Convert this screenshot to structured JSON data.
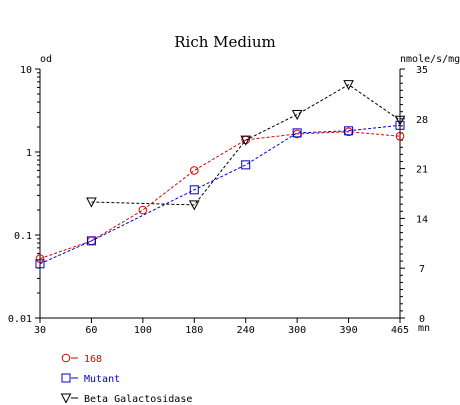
{
  "chart_data": {
    "type": "line",
    "title": "Rich Medium",
    "left_axis_label": "od",
    "right_axis_label": "nmole/s/mg",
    "x_unit_label": "mn",
    "x_ticks": [
      30,
      60,
      100,
      180,
      240,
      300,
      390,
      465
    ],
    "x_range": [
      30,
      465
    ],
    "y_left": {
      "scale": "log",
      "range": [
        0.01,
        10
      ],
      "ticks": [
        10,
        1,
        0.1,
        0.01
      ],
      "tick_labels": [
        "10",
        "1",
        "0.1",
        "0.01"
      ]
    },
    "y_right": {
      "scale": "linear",
      "range": [
        0,
        35
      ],
      "ticks": [
        35,
        28,
        21,
        14,
        7,
        0
      ],
      "tick_labels": [
        "35",
        "28",
        "21",
        "14",
        "7",
        "0"
      ]
    },
    "grid": false,
    "legend_position": "bottom-left",
    "series": [
      {
        "name": "168",
        "axis": "left",
        "marker": "circle",
        "color": "#dd0000",
        "x": [
          30,
          60,
          100,
          180,
          240,
          300,
          390,
          465
        ],
        "y": [
          0.052,
          0.085,
          0.2,
          0.6,
          1.4,
          1.65,
          1.75,
          1.55
        ]
      },
      {
        "name": "Mutant",
        "axis": "left",
        "marker": "square",
        "color": "#0000cc",
        "x": [
          30,
          60,
          180,
          240,
          300,
          390,
          465
        ],
        "y": [
          0.045,
          0.085,
          0.35,
          0.7,
          1.7,
          1.8,
          2.1
        ]
      },
      {
        "name": "Beta Galactosidase",
        "axis": "right",
        "marker": "triangle-down",
        "color": "#000000",
        "x": [
          60,
          180,
          240,
          300,
          390,
          465
        ],
        "y": [
          16.3,
          15.9,
          25.0,
          28.6,
          32.8,
          27.8
        ]
      }
    ]
  }
}
